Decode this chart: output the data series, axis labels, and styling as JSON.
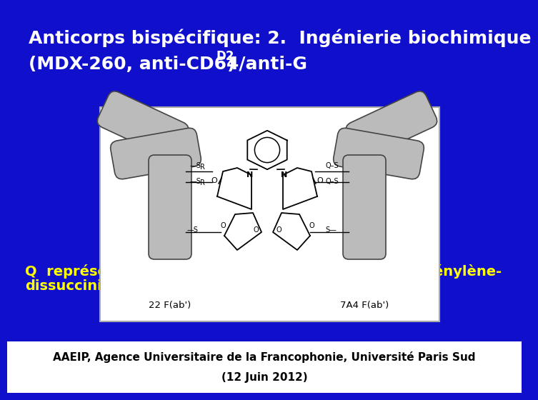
{
  "bg_color": "#1010CC",
  "title_line1": "Anticorps bispécifique: 2.  Ingénierie biochimique",
  "title_line2_part1": "(MDX-260, anti-CD64/anti-G",
  "title_line2_sub": "D2",
  "title_line2_part2": ")",
  "title_color": "#FFFFFF",
  "title_fontsize": 18,
  "caption_line1": "Q  représente  le  N-éthyl  succinimidyl;  R,  le  O-phénylène-",
  "caption_line2": "dissuccinimidyl",
  "caption_color": "#FFFF00",
  "caption_fontsize": 14,
  "footer_line1": "AAEIP, Agence Universitaire de la Francophonie, Université Paris Sud",
  "footer_line2": "(12 Juin 2012)",
  "footer_color": "#000000",
  "footer_fontsize": 11,
  "arm_color": "#BBBBBB",
  "arm_edge": "#444444",
  "diagram_bg": "#FFFFFF",
  "diagram_edge": "#AAAAAA"
}
